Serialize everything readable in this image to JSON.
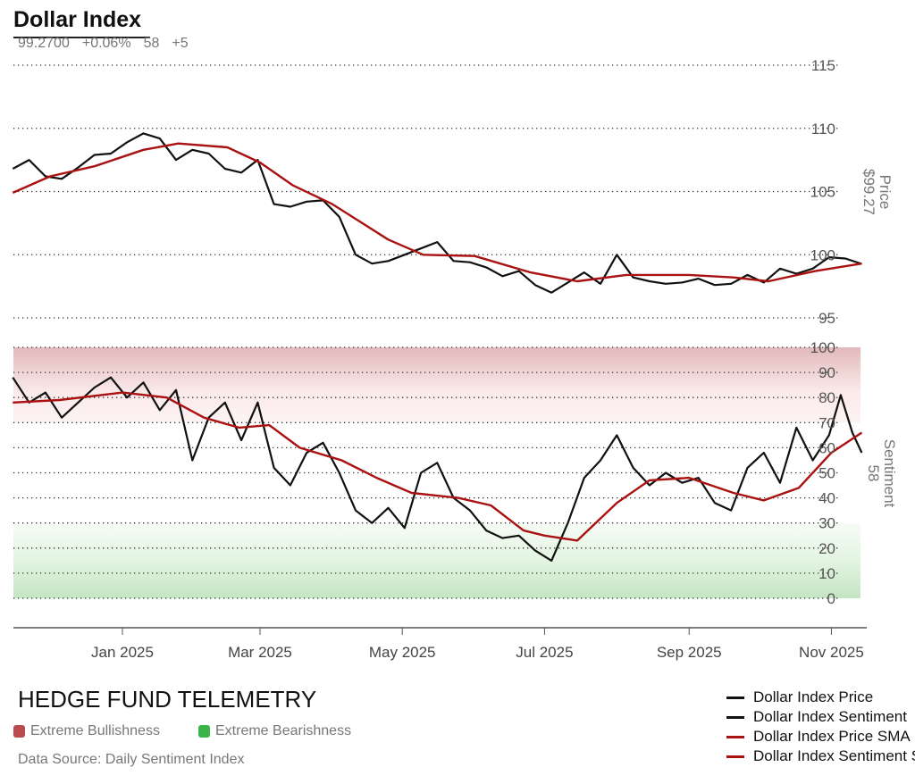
{
  "header": {
    "title": "Dollar Index",
    "price": "99.2700",
    "price_change": "+0.06%",
    "sentiment": "58",
    "sentiment_change": "+5"
  },
  "footer": {
    "brand": "HEDGE FUND TELEMETRY",
    "bands": [
      {
        "label": "Extreme Bullishness",
        "color": "#b94a4d"
      },
      {
        "label": "Extreme Bearishness",
        "color": "#3cb44b"
      }
    ],
    "source": "Data Source: Daily Sentiment Index"
  },
  "legend": [
    {
      "label": "Dollar Index Price",
      "color": "#111111"
    },
    {
      "label": "Dollar Index Sentiment",
      "color": "#111111"
    },
    {
      "label": "Dollar Index Price SMA",
      "color": "#aa1111"
    },
    {
      "label": "Dollar Index Sentiment SMA",
      "color": "#aa1111"
    }
  ],
  "chart_data": {
    "type": "line",
    "x_ticks": [
      "Jan 2025",
      "Mar 2025",
      "May 2025",
      "Jul 2025",
      "Sep 2025",
      "Nov 2025"
    ],
    "x_tick_dates": [
      "2025-01-01",
      "2025-03-01",
      "2025-05-01",
      "2025-07-01",
      "2025-09-01",
      "2025-11-01"
    ],
    "x_range": [
      "2024-11-15",
      "2025-11-17"
    ],
    "panels": [
      {
        "name": "price",
        "axis_title": "Price",
        "axis_value": "$99.27",
        "ylim": [
          95,
          115
        ],
        "y_ticks": [
          95,
          100,
          105,
          110,
          115
        ],
        "grid": "dotted",
        "series": [
          {
            "name": "Dollar Index Price",
            "color": "#111111",
            "points": [
              [
                "2024-11-15",
                106.8
              ],
              [
                "2024-11-22",
                107.5
              ],
              [
                "2024-11-29",
                106.2
              ],
              [
                "2024-12-06",
                106.0
              ],
              [
                "2024-12-13",
                106.9
              ],
              [
                "2024-12-20",
                107.9
              ],
              [
                "2024-12-27",
                108.0
              ],
              [
                "2025-01-03",
                108.9
              ],
              [
                "2025-01-10",
                109.6
              ],
              [
                "2025-01-17",
                109.2
              ],
              [
                "2025-01-24",
                107.5
              ],
              [
                "2025-01-31",
                108.3
              ],
              [
                "2025-02-07",
                108.0
              ],
              [
                "2025-02-14",
                106.8
              ],
              [
                "2025-02-21",
                106.5
              ],
              [
                "2025-02-28",
                107.5
              ],
              [
                "2025-03-07",
                104.0
              ],
              [
                "2025-03-14",
                103.8
              ],
              [
                "2025-03-21",
                104.2
              ],
              [
                "2025-03-28",
                104.3
              ],
              [
                "2025-04-04",
                103.0
              ],
              [
                "2025-04-11",
                100.0
              ],
              [
                "2025-04-18",
                99.3
              ],
              [
                "2025-04-25",
                99.5
              ],
              [
                "2025-05-02",
                100.0
              ],
              [
                "2025-05-09",
                100.5
              ],
              [
                "2025-05-16",
                101.0
              ],
              [
                "2025-05-23",
                99.5
              ],
              [
                "2025-05-30",
                99.4
              ],
              [
                "2025-06-06",
                99.0
              ],
              [
                "2025-06-13",
                98.3
              ],
              [
                "2025-06-20",
                98.7
              ],
              [
                "2025-06-27",
                97.6
              ],
              [
                "2025-07-04",
                97.0
              ],
              [
                "2025-07-11",
                97.8
              ],
              [
                "2025-07-18",
                98.6
              ],
              [
                "2025-07-25",
                97.7
              ],
              [
                "2025-08-01",
                100.0
              ],
              [
                "2025-08-08",
                98.2
              ],
              [
                "2025-08-15",
                97.9
              ],
              [
                "2025-08-22",
                97.7
              ],
              [
                "2025-08-29",
                97.8
              ],
              [
                "2025-09-05",
                98.1
              ],
              [
                "2025-09-12",
                97.6
              ],
              [
                "2025-09-19",
                97.7
              ],
              [
                "2025-09-26",
                98.4
              ],
              [
                "2025-10-03",
                97.8
              ],
              [
                "2025-10-10",
                98.9
              ],
              [
                "2025-10-17",
                98.5
              ],
              [
                "2025-10-24",
                98.9
              ],
              [
                "2025-10-31",
                99.8
              ],
              [
                "2025-11-07",
                99.7
              ],
              [
                "2025-11-14",
                99.27
              ]
            ]
          },
          {
            "name": "Dollar Index Price SMA",
            "color": "#aa1111",
            "points": [
              [
                "2024-11-15",
                104.9
              ],
              [
                "2024-12-01",
                106.2
              ],
              [
                "2024-12-20",
                107.0
              ],
              [
                "2025-01-10",
                108.3
              ],
              [
                "2025-01-25",
                108.8
              ],
              [
                "2025-02-15",
                108.5
              ],
              [
                "2025-03-01",
                107.3
              ],
              [
                "2025-03-15",
                105.5
              ],
              [
                "2025-04-01",
                104.0
              ],
              [
                "2025-04-25",
                101.2
              ],
              [
                "2025-05-10",
                100.0
              ],
              [
                "2025-06-01",
                99.9
              ],
              [
                "2025-06-25",
                98.6
              ],
              [
                "2025-07-15",
                97.9
              ],
              [
                "2025-08-05",
                98.4
              ],
              [
                "2025-09-01",
                98.4
              ],
              [
                "2025-09-20",
                98.2
              ],
              [
                "2025-10-05",
                97.9
              ],
              [
                "2025-10-25",
                98.7
              ],
              [
                "2025-11-14",
                99.3
              ]
            ]
          }
        ]
      },
      {
        "name": "sentiment",
        "axis_title": "Sentiment",
        "axis_value": "58",
        "ylim": [
          0,
          100
        ],
        "y_ticks": [
          0,
          10,
          20,
          30,
          40,
          50,
          60,
          70,
          80,
          90,
          100
        ],
        "grid": "dotted",
        "bands": [
          {
            "label": "Extreme Bullishness",
            "from": 70,
            "to": 100,
            "color": "#e5bfc0"
          },
          {
            "label": "Extreme Bearishness",
            "from": 0,
            "to": 30,
            "color": "#c4e6c4"
          }
        ],
        "series": [
          {
            "name": "Dollar Index Sentiment",
            "color": "#111111",
            "points": [
              [
                "2024-11-15",
                88
              ],
              [
                "2024-11-22",
                78
              ],
              [
                "2024-11-29",
                82
              ],
              [
                "2024-12-06",
                72
              ],
              [
                "2024-12-13",
                78
              ],
              [
                "2024-12-20",
                84
              ],
              [
                "2024-12-27",
                88
              ],
              [
                "2025-01-03",
                80
              ],
              [
                "2025-01-10",
                86
              ],
              [
                "2025-01-17",
                75
              ],
              [
                "2025-01-24",
                83
              ],
              [
                "2025-01-31",
                55
              ],
              [
                "2025-02-07",
                72
              ],
              [
                "2025-02-14",
                78
              ],
              [
                "2025-02-21",
                63
              ],
              [
                "2025-02-28",
                78
              ],
              [
                "2025-03-07",
                52
              ],
              [
                "2025-03-14",
                45
              ],
              [
                "2025-03-21",
                58
              ],
              [
                "2025-03-28",
                62
              ],
              [
                "2025-04-04",
                50
              ],
              [
                "2025-04-11",
                35
              ],
              [
                "2025-04-18",
                30
              ],
              [
                "2025-04-25",
                36
              ],
              [
                "2025-05-02",
                28
              ],
              [
                "2025-05-09",
                50
              ],
              [
                "2025-05-16",
                54
              ],
              [
                "2025-05-23",
                40
              ],
              [
                "2025-05-30",
                35
              ],
              [
                "2025-06-06",
                27
              ],
              [
                "2025-06-13",
                24
              ],
              [
                "2025-06-20",
                25
              ],
              [
                "2025-06-27",
                19
              ],
              [
                "2025-07-04",
                15
              ],
              [
                "2025-07-11",
                30
              ],
              [
                "2025-07-18",
                48
              ],
              [
                "2025-07-25",
                55
              ],
              [
                "2025-08-01",
                65
              ],
              [
                "2025-08-08",
                52
              ],
              [
                "2025-08-15",
                45
              ],
              [
                "2025-08-22",
                50
              ],
              [
                "2025-08-29",
                46
              ],
              [
                "2025-09-05",
                48
              ],
              [
                "2025-09-12",
                38
              ],
              [
                "2025-09-19",
                35
              ],
              [
                "2025-09-26",
                52
              ],
              [
                "2025-10-03",
                58
              ],
              [
                "2025-10-10",
                46
              ],
              [
                "2025-10-17",
                68
              ],
              [
                "2025-10-24",
                55
              ],
              [
                "2025-10-31",
                65
              ],
              [
                "2025-11-05",
                81
              ],
              [
                "2025-11-10",
                66
              ],
              [
                "2025-11-14",
                58
              ]
            ]
          },
          {
            "name": "Dollar Index Sentiment SMA",
            "color": "#aa1111",
            "points": [
              [
                "2024-11-15",
                78
              ],
              [
                "2024-12-05",
                79
              ],
              [
                "2025-01-01",
                82
              ],
              [
                "2025-01-20",
                80
              ],
              [
                "2025-02-05",
                72
              ],
              [
                "2025-02-20",
                68
              ],
              [
                "2025-03-05",
                69
              ],
              [
                "2025-03-18",
                60
              ],
              [
                "2025-04-05",
                55
              ],
              [
                "2025-04-20",
                48
              ],
              [
                "2025-05-05",
                42
              ],
              [
                "2025-05-25",
                40
              ],
              [
                "2025-06-08",
                37
              ],
              [
                "2025-06-22",
                27
              ],
              [
                "2025-07-01",
                25
              ],
              [
                "2025-07-15",
                23
              ],
              [
                "2025-08-01",
                38
              ],
              [
                "2025-08-15",
                47
              ],
              [
                "2025-09-01",
                48
              ],
              [
                "2025-09-20",
                42
              ],
              [
                "2025-10-03",
                39
              ],
              [
                "2025-10-18",
                44
              ],
              [
                "2025-11-01",
                58
              ],
              [
                "2025-11-14",
                66
              ]
            ]
          }
        ]
      }
    ]
  }
}
